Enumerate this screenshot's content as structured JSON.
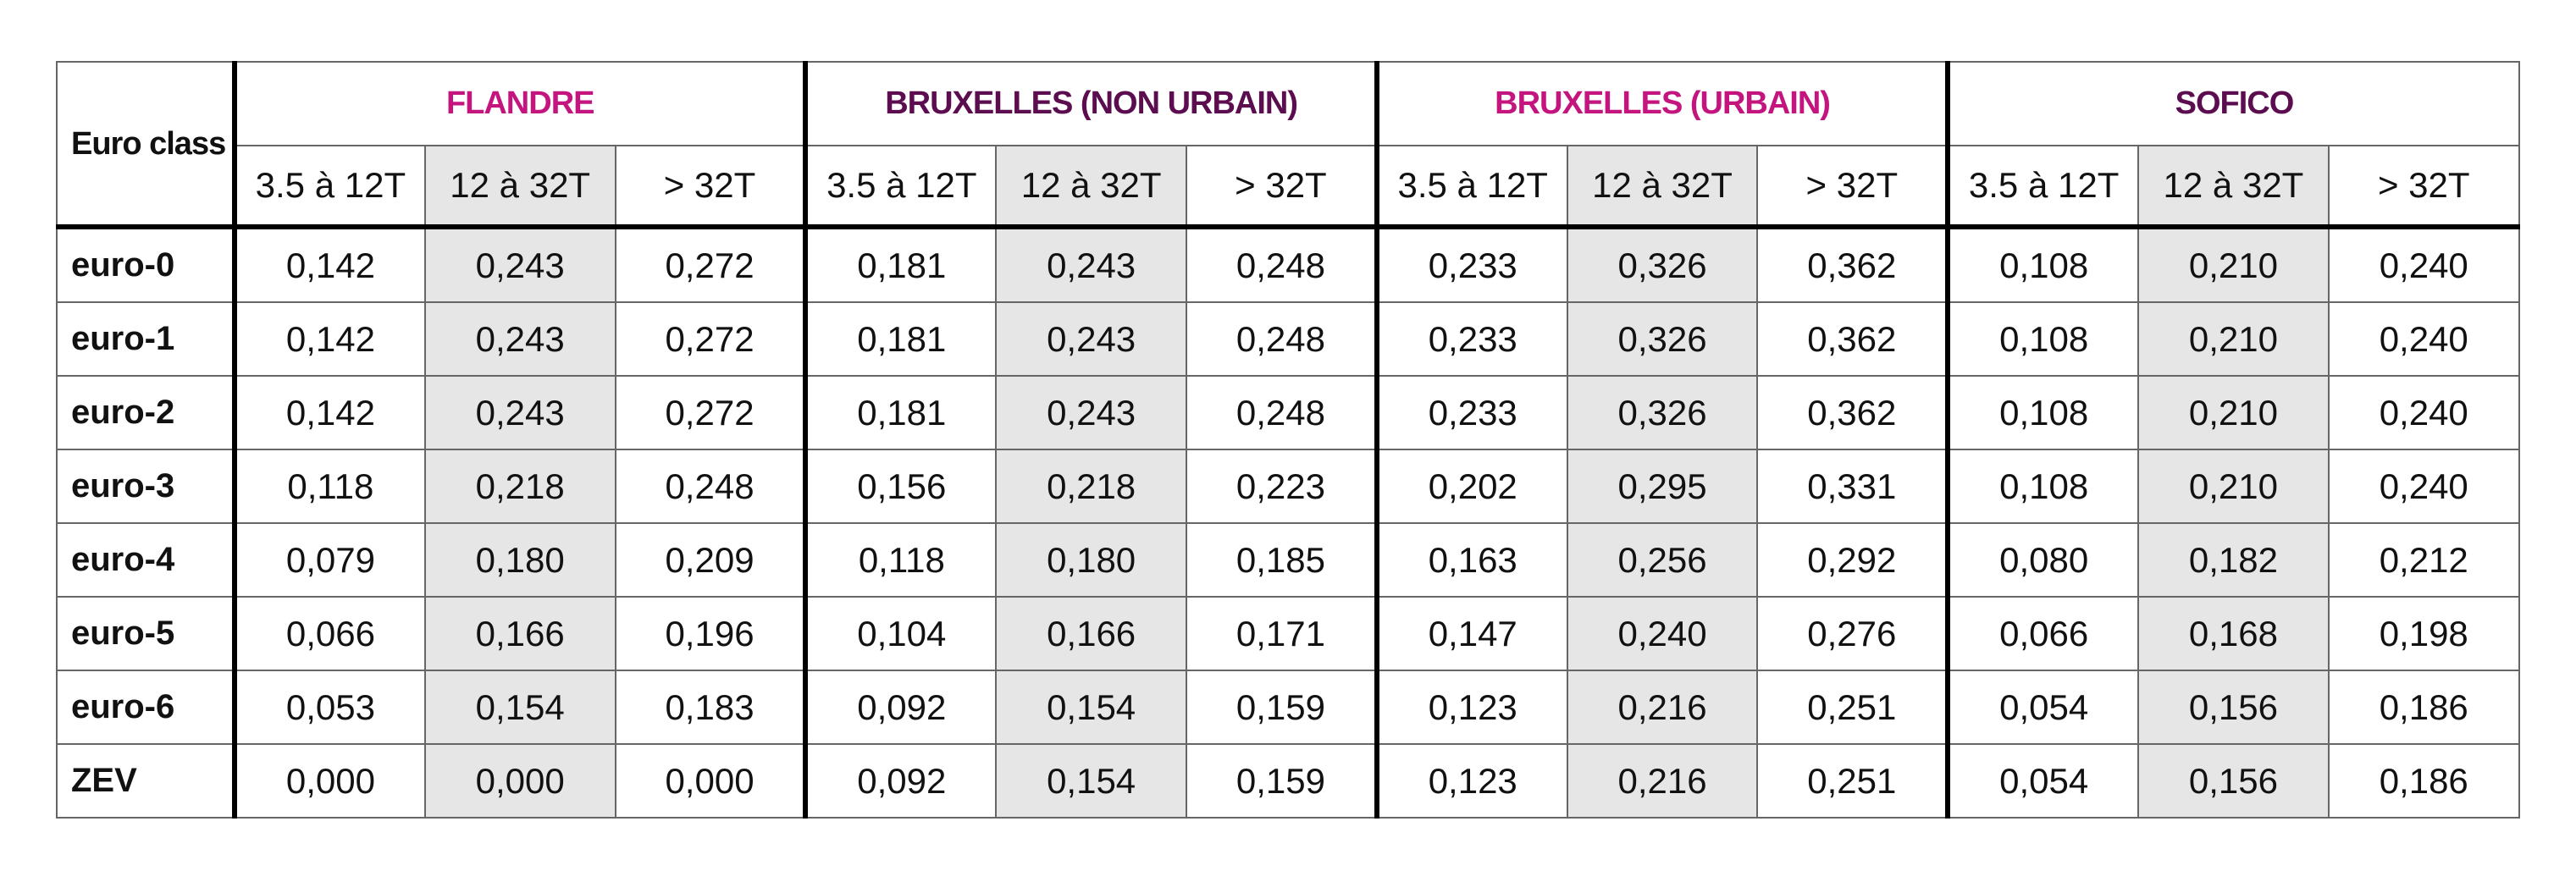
{
  "table": {
    "corner": "Euro class",
    "groups": [
      {
        "name": "FLANDRE",
        "color": "#c4157f"
      },
      {
        "name": "BRUXELLES (NON URBAIN)",
        "color": "#5c0d4f"
      },
      {
        "name": "BRUXELLES (URBAIN)",
        "color": "#c4157f"
      },
      {
        "name": "SOFICO",
        "color": "#5c0d4f"
      }
    ],
    "subcolumns": [
      [
        "3.5 à 12T",
        "12 à 32T",
        "> 32T"
      ],
      [
        "3.5 à 12T",
        "12 à 32T",
        "> 32T"
      ],
      [
        "3.5 à 12T",
        "12 à 32T",
        "> 32T"
      ],
      [
        "3.5 à 12T",
        "12 à 32T",
        "> 32T"
      ]
    ],
    "rows": [
      {
        "label": "euro-0",
        "cells": [
          "0,142",
          "0,243",
          "0,272",
          "0,181",
          "0,243",
          "0,248",
          "0,233",
          "0,326",
          "0,362",
          "0,108",
          "0,210",
          "0,240"
        ]
      },
      {
        "label": "euro-1",
        "cells": [
          "0,142",
          "0,243",
          "0,272",
          "0,181",
          "0,243",
          "0,248",
          "0,233",
          "0,326",
          "0,362",
          "0,108",
          "0,210",
          "0,240"
        ]
      },
      {
        "label": "euro-2",
        "cells": [
          "0,142",
          "0,243",
          "0,272",
          "0,181",
          "0,243",
          "0,248",
          "0,233",
          "0,326",
          "0,362",
          "0,108",
          "0,210",
          "0,240"
        ]
      },
      {
        "label": "euro-3",
        "cells": [
          "0,118",
          "0,218",
          "0,248",
          "0,156",
          "0,218",
          "0,223",
          "0,202",
          "0,295",
          "0,331",
          "0,108",
          "0,210",
          "0,240"
        ]
      },
      {
        "label": "euro-4",
        "cells": [
          "0,079",
          "0,180",
          "0,209",
          "0,118",
          "0,180",
          "0,185",
          "0,163",
          "0,256",
          "0,292",
          "0,080",
          "0,182",
          "0,212"
        ]
      },
      {
        "label": "euro-5",
        "cells": [
          "0,066",
          "0,166",
          "0,196",
          "0,104",
          "0,166",
          "0,171",
          "0,147",
          "0,240",
          "0,276",
          "0,066",
          "0,168",
          "0,198"
        ]
      },
      {
        "label": "euro-6",
        "cells": [
          "0,053",
          "0,154",
          "0,183",
          "0,092",
          "0,154",
          "0,159",
          "0,123",
          "0,216",
          "0,251",
          "0,054",
          "0,156",
          "0,186"
        ]
      },
      {
        "label": "ZEV",
        "cells": [
          "0,000",
          "0,000",
          "0,000",
          "0,092",
          "0,154",
          "0,159",
          "0,123",
          "0,216",
          "0,251",
          "0,054",
          "0,156",
          "0,186"
        ]
      }
    ]
  }
}
